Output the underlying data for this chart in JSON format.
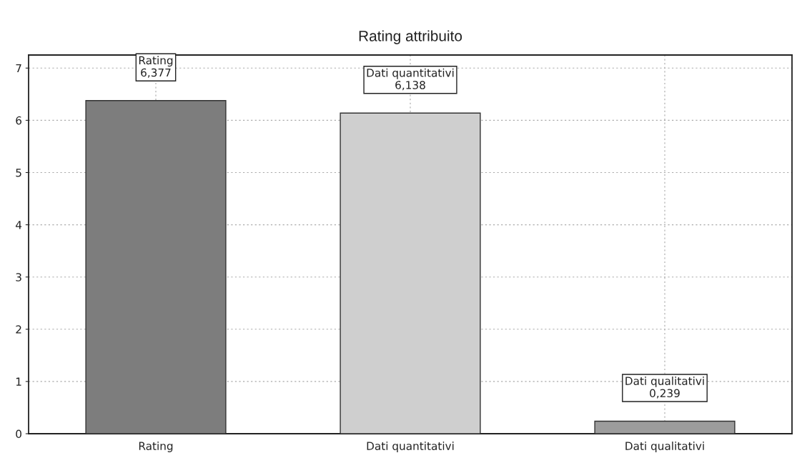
{
  "chart_data": {
    "type": "bar",
    "title": "Rating attribuito",
    "categories": [
      "Rating",
      "Dati quantitativi",
      "Dati qualitativi"
    ],
    "values": [
      6.377,
      6.138,
      0.239
    ],
    "colors": [
      "#7d7d7d",
      "#cfcfcf",
      "#9c9c9c"
    ],
    "value_labels": [
      "Rating\n6,377",
      "Dati quantitativi\n6,138",
      "Dati qualitativi\n0,239"
    ],
    "ylim": [
      0,
      7.25
    ],
    "yticks": [
      0,
      1,
      2,
      3,
      4,
      5,
      6,
      7
    ],
    "grid": true,
    "legend": false
  }
}
